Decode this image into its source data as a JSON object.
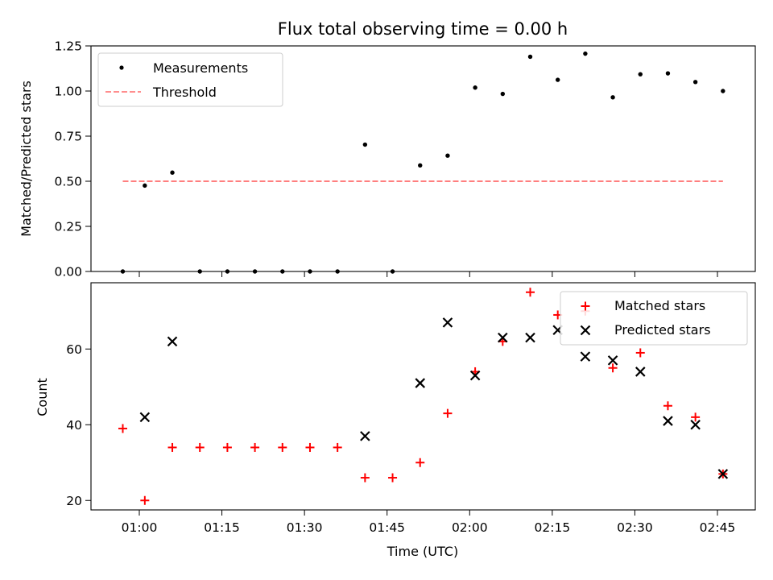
{
  "figure": {
    "title": "Flux total observing time = 0.00 h",
    "xlabel": "Time (UTC)"
  },
  "colors": {
    "measurement": "#000000",
    "threshold": "#ff7f7f",
    "matched": "#ff0000",
    "predicted": "#000000"
  },
  "chart_data": [
    {
      "type": "scatter",
      "title": "Flux total observing time = 0.00 h",
      "xlabel": "",
      "ylabel": "Matched/Predicted stars",
      "ylim": [
        0,
        1.25
      ],
      "yticks": [
        "0.00",
        "0.25",
        "0.50",
        "0.75",
        "1.00",
        "1.25"
      ],
      "legend": {
        "placement": "top-left",
        "entries": [
          "Measurements",
          "Threshold"
        ]
      },
      "series": [
        {
          "name": "Measurements",
          "marker": "dot",
          "x": [
            "00:57",
            "01:01",
            "01:06",
            "01:11",
            "01:16",
            "01:21",
            "01:26",
            "01:31",
            "01:36",
            "01:41",
            "01:46",
            "01:51",
            "01:56",
            "02:01",
            "02:06",
            "02:11",
            "02:16",
            "02:21",
            "02:26",
            "02:31",
            "02:36",
            "02:41",
            "02:46"
          ],
          "y": [
            0.0,
            0.476,
            0.548,
            0.0,
            0.0,
            0.0,
            0.0,
            0.0,
            0.0,
            0.703,
            0.0,
            0.588,
            0.642,
            1.019,
            0.984,
            1.19,
            1.062,
            1.207,
            0.965,
            1.093,
            1.098,
            1.05,
            1.0
          ]
        },
        {
          "name": "Threshold",
          "style": "dashed",
          "x": [
            "00:57",
            "02:46"
          ],
          "y": [
            0.5,
            0.5
          ]
        }
      ]
    },
    {
      "type": "scatter",
      "xlabel": "Time (UTC)",
      "ylabel": "Count",
      "xticks": [
        "01:00",
        "01:15",
        "01:30",
        "01:45",
        "02:00",
        "02:15",
        "02:30",
        "02:45"
      ],
      "yticks": [
        "20",
        "40",
        "60"
      ],
      "ylim": [
        17.5,
        77.5
      ],
      "legend": {
        "placement": "top-right",
        "entries": [
          "Matched stars",
          "Predicted stars"
        ]
      },
      "series": [
        {
          "name": "Matched stars",
          "marker": "plus",
          "x": [
            "00:57",
            "01:01",
            "01:06",
            "01:11",
            "01:16",
            "01:21",
            "01:26",
            "01:31",
            "01:36",
            "01:41",
            "01:46",
            "01:51",
            "01:56",
            "02:01",
            "02:06",
            "02:11",
            "02:16",
            "02:21",
            "02:26",
            "02:31",
            "02:36",
            "02:41",
            "02:46"
          ],
          "y": [
            39,
            20,
            34,
            34,
            34,
            34,
            34,
            34,
            34,
            26,
            26,
            30,
            43,
            54,
            62,
            75,
            69,
            70,
            55,
            59,
            45,
            42,
            27
          ]
        },
        {
          "name": "Predicted stars",
          "marker": "x",
          "x": [
            "01:01",
            "01:06",
            "01:41",
            "01:51",
            "01:56",
            "02:01",
            "02:06",
            "02:11",
            "02:16",
            "02:21",
            "02:26",
            "02:31",
            "02:36",
            "02:41",
            "02:46"
          ],
          "y": [
            42,
            62,
            37,
            51,
            67,
            53,
            63,
            63,
            65,
            58,
            57,
            54,
            41,
            40,
            27
          ]
        }
      ]
    }
  ]
}
